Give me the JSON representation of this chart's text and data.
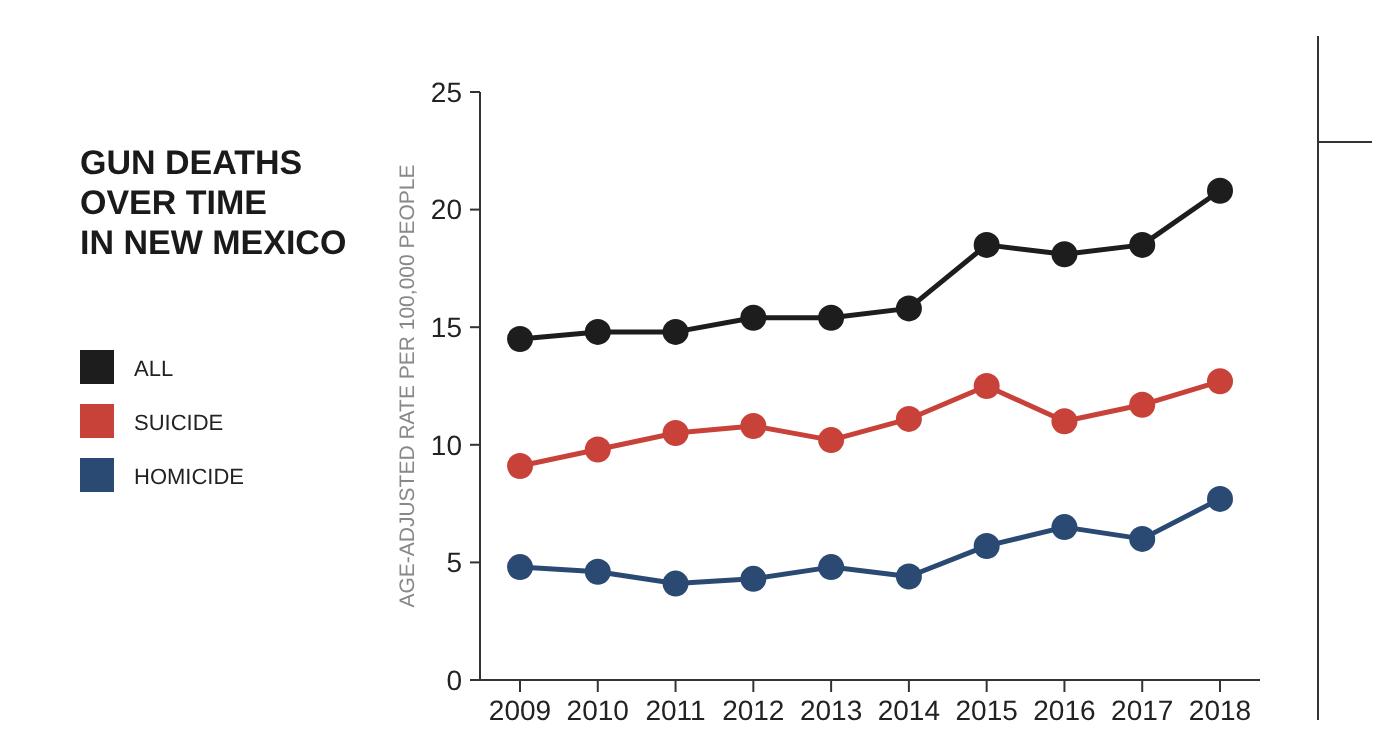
{
  "chart_data": {
    "type": "line",
    "title": "GUN DEATHS\nOVER TIME\nIN NEW MEXICO",
    "ylabel": "AGE-ADJUSTED RATE PER 100,000 PEOPLE",
    "categories": [
      "2009",
      "2010",
      "2011",
      "2012",
      "2013",
      "2014",
      "2015",
      "2016",
      "2017",
      "2018"
    ],
    "series": [
      {
        "name": "ALL",
        "color": "#1d1d1d",
        "values": [
          14.5,
          14.8,
          14.8,
          15.4,
          15.4,
          15.8,
          18.5,
          18.1,
          18.5,
          20.8
        ]
      },
      {
        "name": "SUICIDE",
        "color": "#c8423a",
        "values": [
          9.1,
          9.8,
          10.5,
          10.8,
          10.2,
          11.1,
          12.5,
          11.0,
          11.7,
          12.7
        ]
      },
      {
        "name": "HOMICIDE",
        "color": "#2b4a73",
        "values": [
          4.8,
          4.6,
          4.1,
          4.3,
          4.8,
          4.4,
          5.7,
          6.5,
          6.0,
          7.7
        ]
      }
    ],
    "ylim": [
      0,
      25
    ],
    "yticks": [
      0,
      5,
      10,
      15,
      20,
      25
    ],
    "grid": false,
    "legend": "left",
    "marker": "circle",
    "line_style": "solid"
  }
}
